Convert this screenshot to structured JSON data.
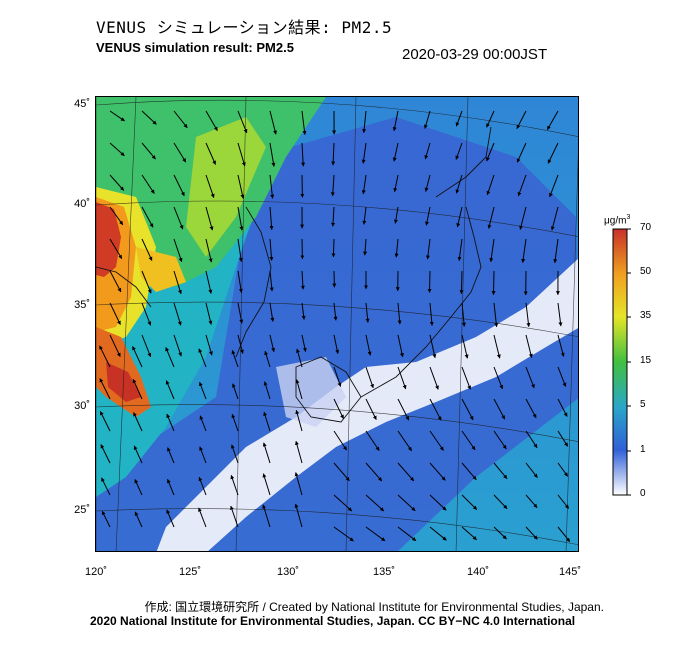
{
  "header": {
    "title_jp": "VENUS シミュレーション結果: PM2.5",
    "title_en": "VENUS simulation result: PM2.5",
    "timestamp": "2020-03-29 00:00JST"
  },
  "map": {
    "lat_labels": [
      "45˚",
      "40˚",
      "35˚",
      "30˚",
      "25˚"
    ],
    "lon_labels": [
      "120˚",
      "125˚",
      "130˚",
      "135˚",
      "140˚",
      "145˚"
    ],
    "variable": "PM2.5",
    "overlay": "wind vectors"
  },
  "colorbar": {
    "unit_base": "μg/m",
    "unit_sup": "3",
    "ticks": [
      "70",
      "50",
      "35",
      "15",
      "5",
      "1",
      "0"
    ],
    "colors": [
      "#c8302a",
      "#f0a020",
      "#e6e428",
      "#40c040",
      "#2aa6c8",
      "#3060d8",
      "#ffffff"
    ]
  },
  "credits": {
    "jp": "作成: 国立環境研究所 / Created by National Institute for Environmental Studies, Japan.",
    "en": "2020 National Institute for Environmental Studies, Japan. CC BY−NC 4.0 International"
  }
}
